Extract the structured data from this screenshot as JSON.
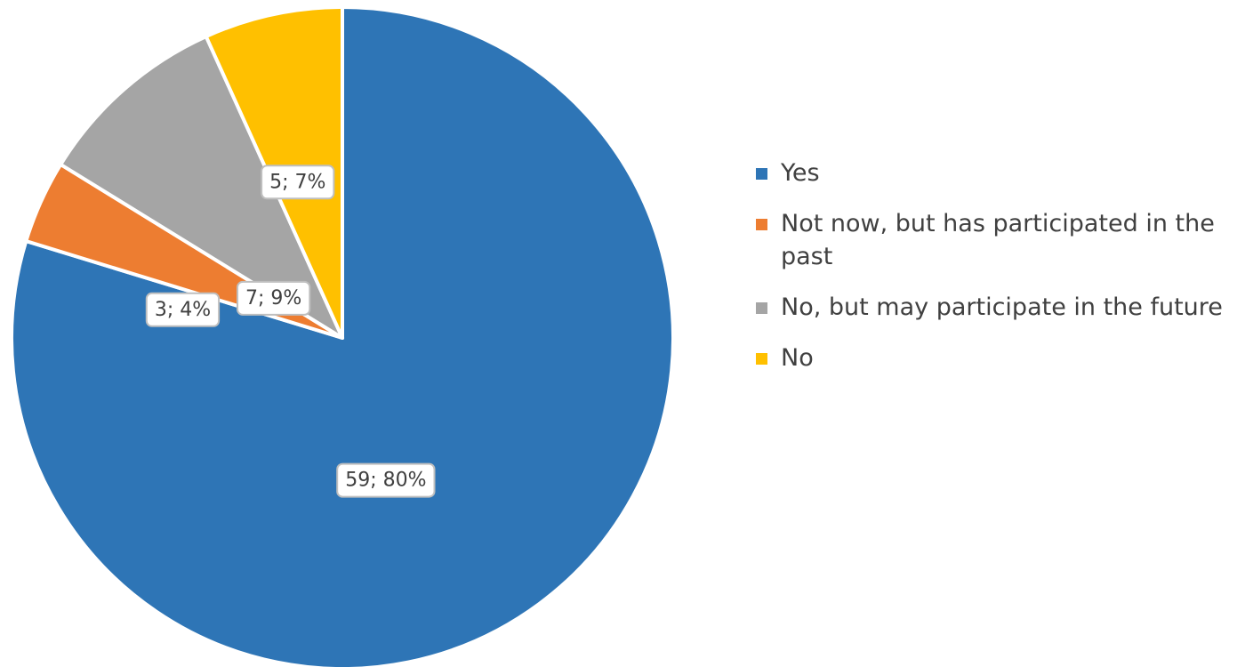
{
  "chart_data": {
    "type": "pie",
    "title": "",
    "legend_position": "right",
    "start_angle_deg": 0,
    "direction": "clockwise",
    "slices": [
      {
        "name": "Yes",
        "value": 59,
        "percent": "80%",
        "label": "59; 80%",
        "color": "#2E75B6"
      },
      {
        "name": "Not now, but has participated in the past",
        "value": 3,
        "percent": "4%",
        "label": "3; 4%",
        "color": "#ED7D31"
      },
      {
        "name": "No, but may participate in the future",
        "value": 7,
        "percent": "9%",
        "label": "7; 9%",
        "color": "#A5A5A5"
      },
      {
        "name": "No",
        "value": 5,
        "percent": "7%",
        "label": "5; 7%",
        "color": "#FFC000"
      }
    ]
  }
}
